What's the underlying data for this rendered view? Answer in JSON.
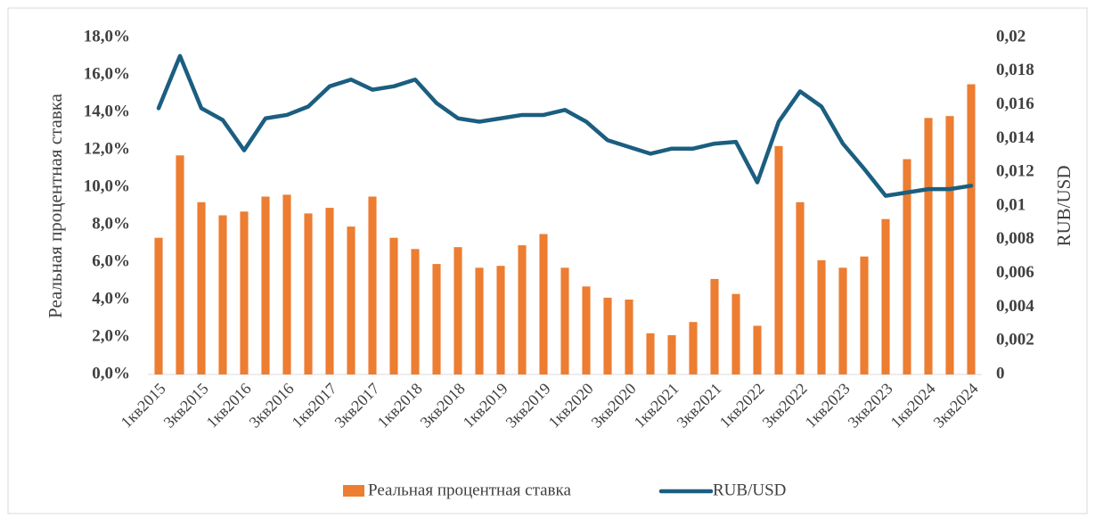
{
  "chart_data": {
    "type": "bar_line",
    "ylabel": "Реальная процентная ставка",
    "y2label": "RUB/USD",
    "categories": [
      "1кв2015",
      null,
      "3кв2015",
      null,
      "1кв2016",
      null,
      "3кв2016",
      null,
      "1кв2017",
      null,
      "3кв2017",
      null,
      "1кв2018",
      null,
      "3кв2018",
      null,
      "1кв2019",
      null,
      "3кв2019",
      null,
      "1кв2020",
      null,
      "3кв2020",
      null,
      "1кв2021",
      null,
      "3кв2021",
      null,
      "1кв2022",
      null,
      "3кв2022",
      null,
      "1кв2023",
      null,
      "3кв2023",
      null,
      "1кв2024",
      null,
      "3кв2024"
    ],
    "series": [
      {
        "name": "Реальная процентная ставка",
        "color": "#ed7d31",
        "type": "bar",
        "values": [
          7.3,
          11.7,
          9.2,
          8.5,
          8.7,
          9.5,
          9.6,
          8.6,
          8.9,
          7.9,
          9.5,
          7.3,
          6.7,
          5.9,
          6.8,
          5.7,
          5.8,
          6.9,
          7.5,
          5.7,
          4.7,
          4.1,
          4.0,
          2.2,
          2.1,
          2.8,
          5.1,
          4.3,
          2.6,
          12.2,
          9.2,
          6.1,
          5.7,
          6.3,
          8.3,
          11.5,
          13.7,
          13.8,
          15.5
        ]
      },
      {
        "name": "RUB/USD",
        "color": "#1b5e80",
        "type": "line",
        "axis": "y2",
        "values": [
          0.0158,
          0.0189,
          0.0158,
          0.0151,
          0.0133,
          0.0152,
          0.0154,
          0.0159,
          0.0171,
          0.0175,
          0.0169,
          0.0171,
          0.0175,
          0.0161,
          0.0152,
          0.015,
          0.0152,
          0.0154,
          0.0154,
          0.0157,
          0.015,
          0.0139,
          0.0135,
          0.0131,
          0.0134,
          0.0134,
          0.0137,
          0.0138,
          0.0114,
          0.015,
          0.0168,
          0.0159,
          0.0137,
          0.0122,
          0.0106,
          0.0108,
          0.011,
          0.011,
          0.0112
        ]
      }
    ],
    "ylim": [
      0,
      18
    ],
    "yticks": [
      {
        "value": 0,
        "label": "0,0%"
      },
      {
        "value": 2,
        "label": "2,0%"
      },
      {
        "value": 4,
        "label": "4,0%"
      },
      {
        "value": 6,
        "label": "6,0%"
      },
      {
        "value": 8,
        "label": "8,0%"
      },
      {
        "value": 10,
        "label": "10,0%"
      },
      {
        "value": 12,
        "label": "12,0%"
      },
      {
        "value": 14,
        "label": "14,0%"
      },
      {
        "value": 16,
        "label": "16,0%"
      },
      {
        "value": 18,
        "label": "18,0%"
      }
    ],
    "y2lim": [
      0,
      0.02
    ],
    "y2ticks": [
      0,
      {
        "value": 0.002,
        "label": "0,002"
      },
      {
        "value": 0.004,
        "label": "0,004"
      },
      {
        "value": 0.006,
        "label": "0,006"
      },
      {
        "value": 0.008,
        "label": "0,008"
      },
      {
        "value": 0.01,
        "label": "0,01"
      },
      {
        "value": 0.012,
        "label": "0,012"
      },
      {
        "value": 0.014,
        "label": "0,014"
      },
      {
        "value": 0.016,
        "label": "0,016"
      },
      {
        "value": 0.018,
        "label": "0,018"
      },
      {
        "value": 0.02,
        "label": "0,02"
      }
    ],
    "legend": "bottom"
  }
}
